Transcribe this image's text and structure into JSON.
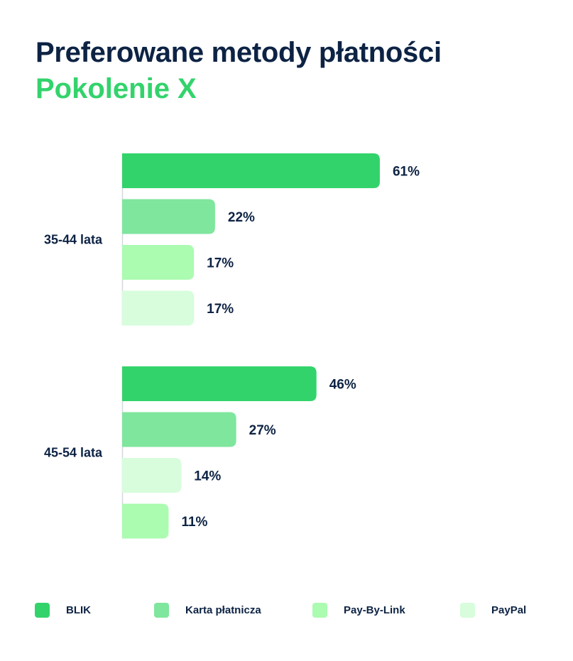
{
  "title": "Preferowane metody płatności",
  "subtitle": "Pokolenie X",
  "colors": {
    "BLIK": "#33d36c",
    "Karta płatnicza": "#7fe69d",
    "Pay-By-Link": "#abfbb1",
    "PayPal": "#d7fddc",
    "text": "#0d2344",
    "axis": "#d4d7dc"
  },
  "legend": [
    {
      "label": "BLIK",
      "color": "#33d36c"
    },
    {
      "label": "Karta płatnicza",
      "color": "#7fe69d"
    },
    {
      "label": "Pay-By-Link",
      "color": "#abfbb1"
    },
    {
      "label": "PayPal",
      "color": "#d7fddc"
    }
  ],
  "chart_data": {
    "type": "bar",
    "orientation": "horizontal",
    "title": "Preferowane metody płatności",
    "subtitle": "Pokolenie X",
    "groups": [
      {
        "label": "35-44 lata",
        "bars": [
          {
            "series": "BLIK",
            "value": 61,
            "label": "61%"
          },
          {
            "series": "Karta płatnicza",
            "value": 22,
            "label": "22%"
          },
          {
            "series": "Pay-By-Link",
            "value": 17,
            "label": "17%"
          },
          {
            "series": "PayPal",
            "value": 17,
            "label": "17%"
          }
        ]
      },
      {
        "label": "45-54 lata",
        "bars": [
          {
            "series": "BLIK",
            "value": 46,
            "label": "46%"
          },
          {
            "series": "Karta płatnicza",
            "value": 27,
            "label": "27%"
          },
          {
            "series": "PayPal",
            "value": 14,
            "label": "14%"
          },
          {
            "series": "Pay-By-Link",
            "value": 11,
            "label": "11%"
          }
        ]
      }
    ],
    "grid": false,
    "legend_position": "bottom"
  }
}
